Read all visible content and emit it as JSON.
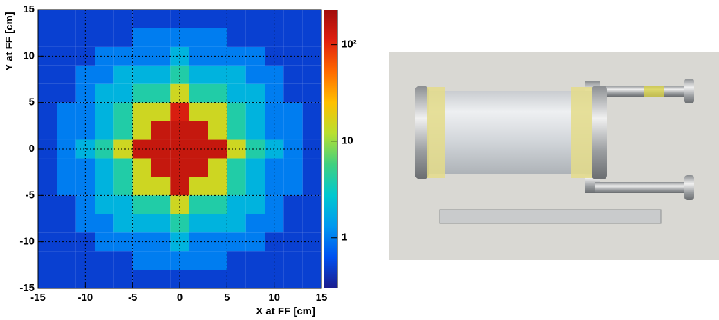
{
  "chart_data": {
    "type": "heatmap",
    "xlabel": "X at FF [cm]",
    "ylabel": "Y at FF [cm]",
    "xbins": [
      -15,
      -13,
      -11,
      -9,
      -7,
      -5,
      -3,
      -1,
      1,
      3,
      5,
      7,
      9,
      11,
      13,
      15
    ],
    "ybins": [
      -15,
      -13,
      -11,
      -9,
      -7,
      -5,
      -3,
      -1,
      1,
      3,
      5,
      7,
      9,
      11,
      13,
      15
    ],
    "values": [
      [
        0.5,
        0.5,
        0.5,
        0.5,
        0.5,
        0.5,
        0.5,
        0.5,
        0.5,
        0.5,
        0.5,
        0.5,
        0.5,
        0.5,
        0.5
      ],
      [
        0.5,
        0.5,
        0.5,
        0.5,
        0.5,
        1,
        1,
        1,
        1,
        1,
        0.5,
        0.5,
        0.5,
        0.5,
        0.5
      ],
      [
        0.5,
        0.5,
        0.5,
        1,
        1,
        1,
        1,
        2,
        1,
        1,
        1,
        1,
        0.5,
        0.5,
        0.5
      ],
      [
        0.5,
        0.5,
        1,
        1,
        2,
        2,
        2,
        4,
        2,
        2,
        2,
        1,
        1,
        0.5,
        0.5
      ],
      [
        0.5,
        0.5,
        1,
        2,
        2,
        4,
        4,
        15,
        4,
        4,
        2,
        2,
        1,
        0.5,
        0.5
      ],
      [
        0.5,
        1,
        1,
        2,
        4,
        15,
        15,
        150,
        15,
        15,
        4,
        2,
        1,
        1,
        0.5
      ],
      [
        0.5,
        1,
        1,
        2,
        4,
        15,
        150,
        150,
        150,
        15,
        4,
        2,
        1,
        1,
        0.5
      ],
      [
        0.5,
        1,
        2,
        4,
        15,
        150,
        150,
        150,
        150,
        150,
        15,
        4,
        2,
        1,
        0.5
      ],
      [
        0.5,
        1,
        1,
        2,
        4,
        15,
        150,
        150,
        150,
        15,
        4,
        2,
        1,
        1,
        0.5
      ],
      [
        0.5,
        1,
        1,
        2,
        4,
        15,
        15,
        120,
        15,
        15,
        4,
        2,
        1,
        1,
        0.5
      ],
      [
        0.5,
        0.5,
        1,
        2,
        2,
        4,
        4,
        15,
        4,
        4,
        2,
        2,
        1,
        0.5,
        0.5
      ],
      [
        0.5,
        0.5,
        1,
        1,
        2,
        2,
        2,
        4,
        2,
        2,
        2,
        1,
        1,
        0.5,
        0.5
      ],
      [
        0.5,
        0.5,
        0.5,
        1,
        1,
        1,
        1,
        2,
        1,
        1,
        1,
        1,
        0.5,
        0.5,
        0.5
      ],
      [
        0.5,
        0.5,
        0.5,
        0.5,
        0.5,
        1,
        1,
        1,
        1,
        1,
        0.5,
        0.5,
        0.5,
        0.5,
        0.5
      ],
      [
        0.5,
        0.5,
        0.5,
        0.5,
        0.5,
        0.5,
        0.5,
        0.5,
        0.5,
        0.5,
        0.5,
        0.5,
        0.5,
        0.5,
        0.5
      ]
    ],
    "xlim": [
      -15,
      15
    ],
    "ylim": [
      -15,
      15
    ],
    "xticks": [
      -15,
      -10,
      -5,
      0,
      5,
      10,
      15
    ],
    "yticks": [
      -15,
      -10,
      -5,
      0,
      5,
      10,
      15
    ],
    "zlim": [
      0.3,
      230
    ],
    "zticks": [
      1,
      10,
      {
        "value": 100,
        "label": "10²"
      }
    ],
    "zscale": "log",
    "grid": true,
    "colormap": [
      "#1c1c8c",
      "#0050f0",
      "#0098f0",
      "#00c8d0",
      "#40d080",
      "#b8e030",
      "#ffc000",
      "#ff6a00",
      "#e02010",
      "#a00c0c"
    ]
  }
}
